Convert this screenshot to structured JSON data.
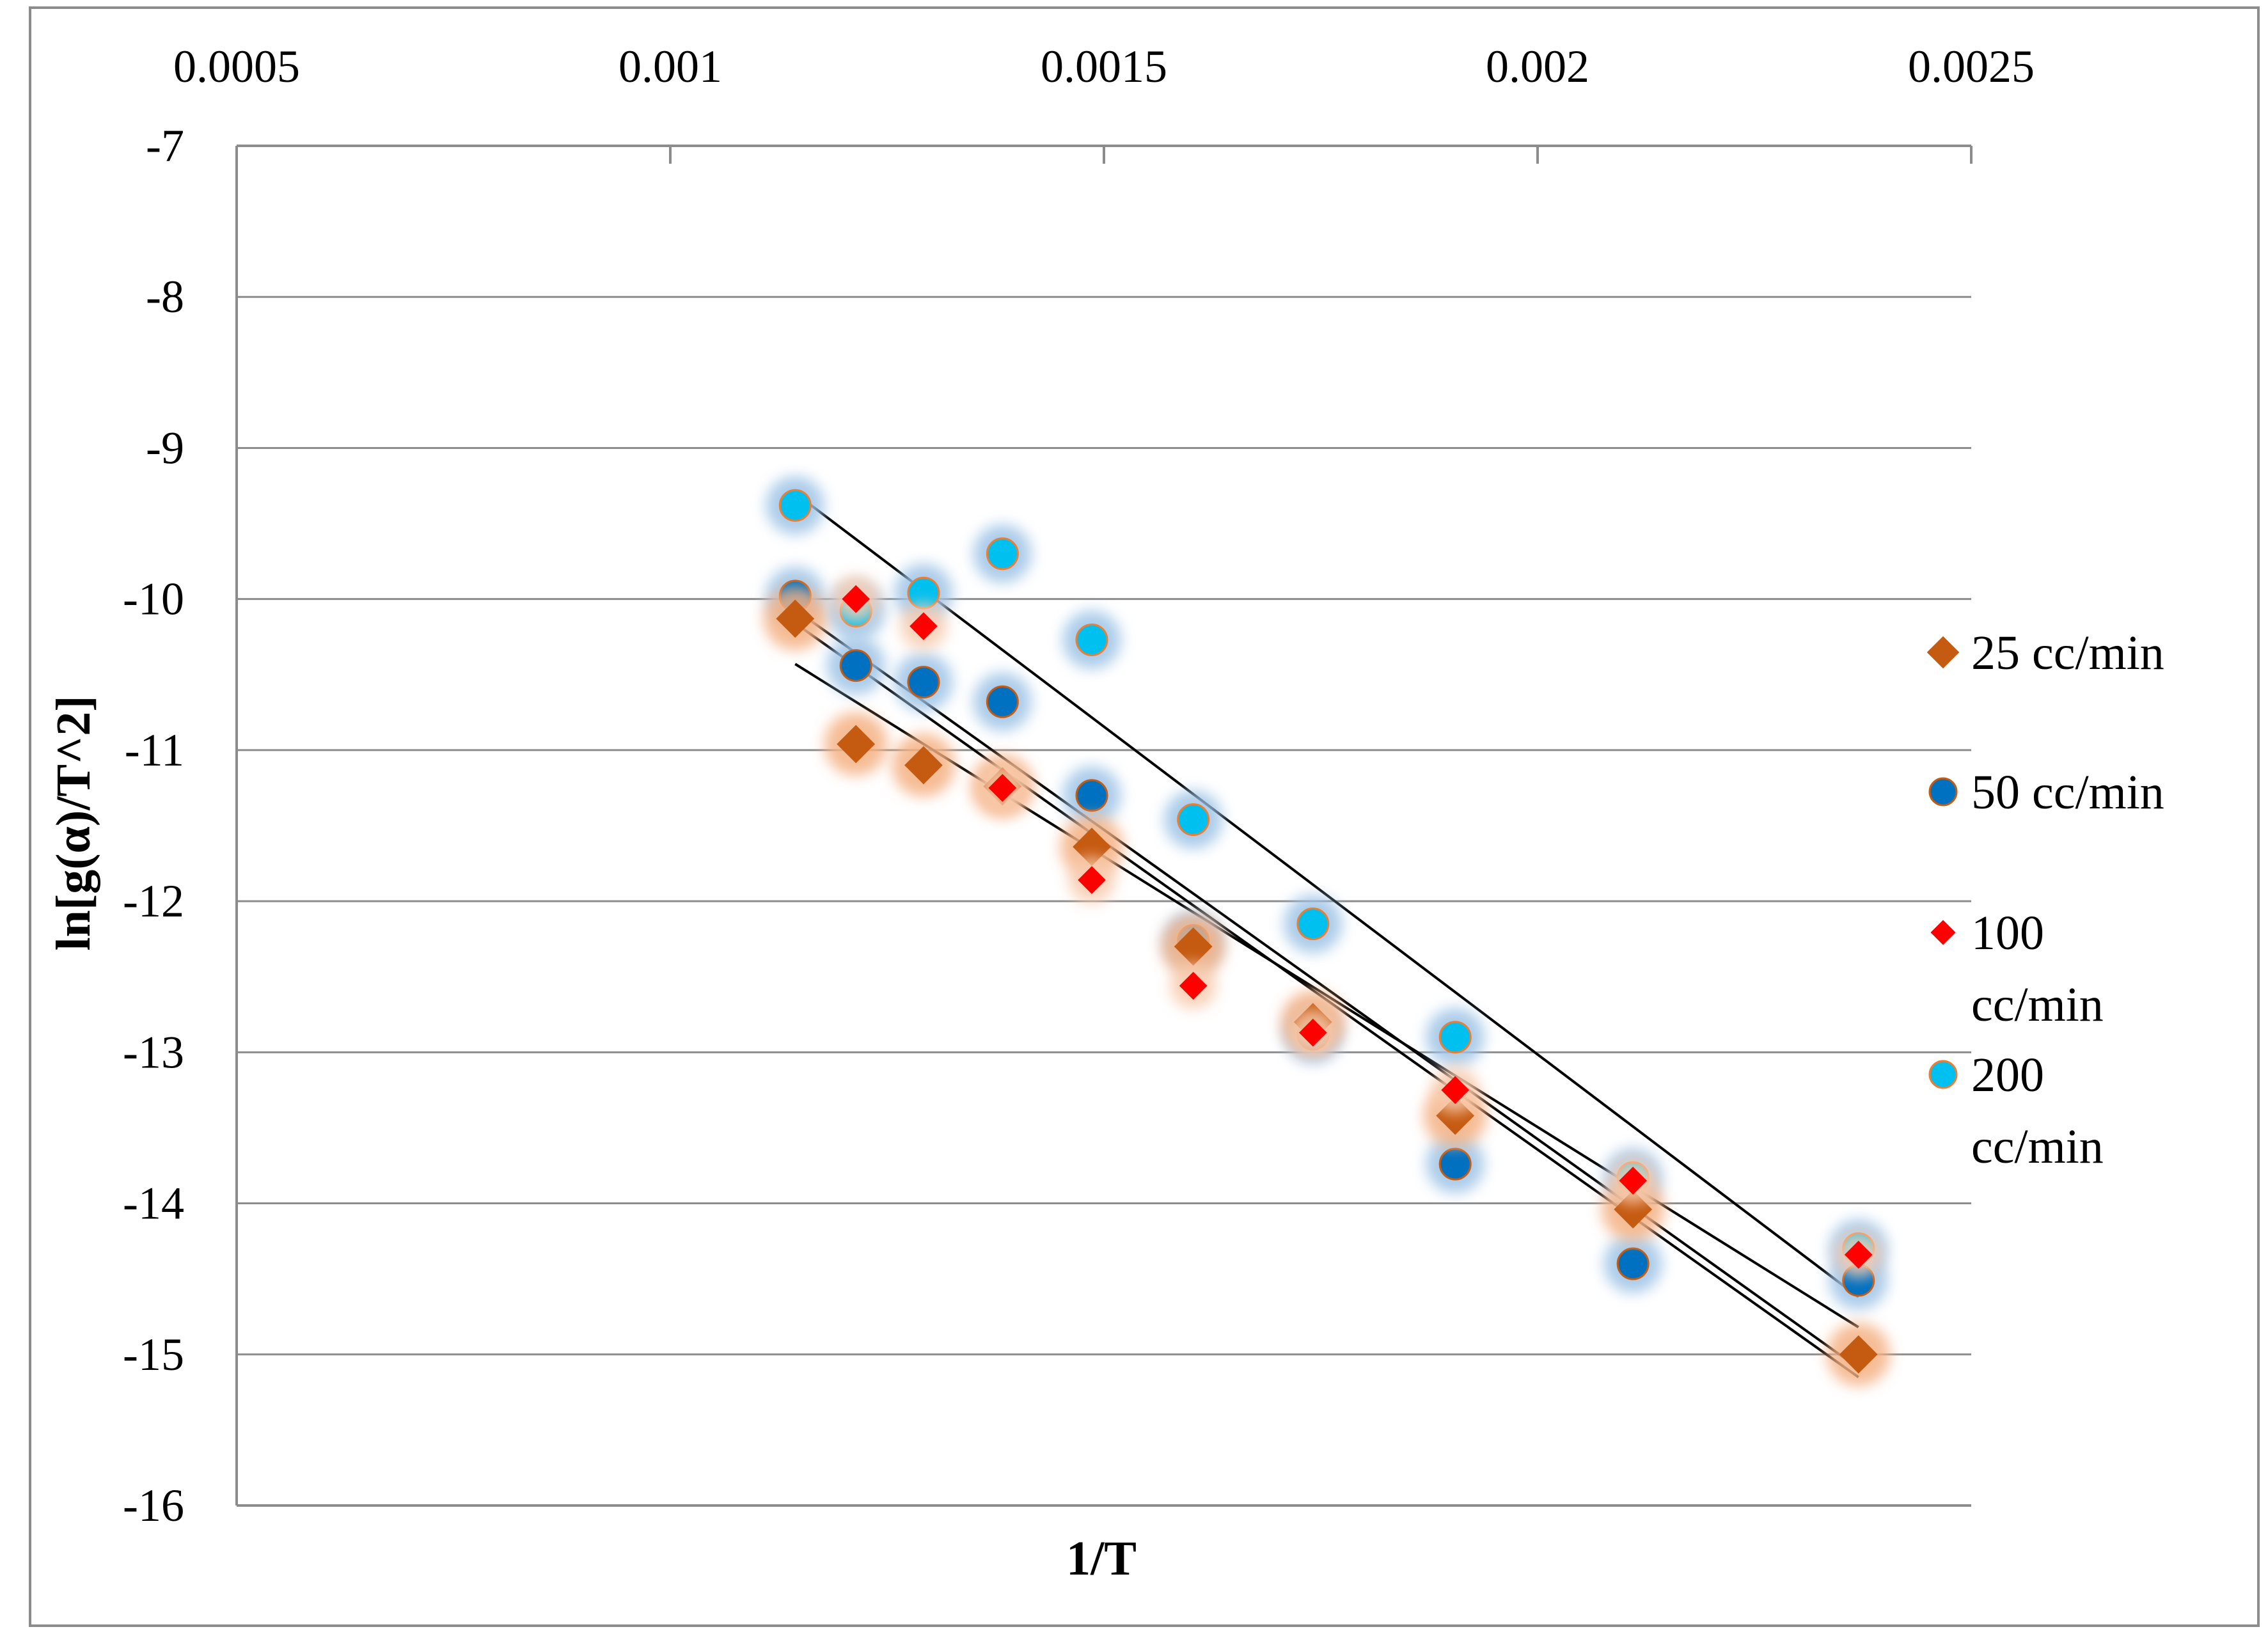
{
  "chart_data": {
    "type": "scatter",
    "title": "",
    "xlabel": "1/T",
    "ylabel": "ln[g(α)/T^2]",
    "x_axis_position": "top",
    "xlim": [
      0.0005,
      0.0025
    ],
    "ylim": [
      -16,
      -7
    ],
    "xticks": [
      "0.0005",
      "0.001",
      "0.0015",
      "0.002",
      "0.0025"
    ],
    "yticks": [
      "-7",
      "-8",
      "-9",
      "-10",
      "-11",
      "-12",
      "-13",
      "-14",
      "-15",
      "-16"
    ],
    "grid": "horizontal",
    "legend_position": "right",
    "series": [
      {
        "name": "25 cc/min",
        "marker": "diamond",
        "color": "#c55a11",
        "glow": "#f4b183",
        "x": [
          0.001144,
          0.001214,
          0.001292,
          0.001383,
          0.001486,
          0.001603,
          0.001741,
          0.001905,
          0.00211,
          0.00237
        ],
        "y": [
          -10.13,
          -10.96,
          -11.1,
          -11.24,
          -11.64,
          -12.3,
          -12.8,
          -13.42,
          -14.04,
          -15.0
        ],
        "fit": {
          "x": [
            0.001144,
            0.00237
          ],
          "y": [
            -10.43,
            -14.82
          ]
        }
      },
      {
        "name": "50 cc/min",
        "marker": "circle",
        "color": "#0070c0",
        "edge": "#c55a11",
        "glow": "#9dc3e6",
        "x": [
          0.001144,
          0.001214,
          0.001292,
          0.001383,
          0.001486,
          0.001603,
          0.001741,
          0.001905,
          0.00211,
          0.00237
        ],
        "y": [
          -9.98,
          -10.44,
          -10.55,
          -10.68,
          -11.3,
          -12.26,
          -12.88,
          -13.74,
          -14.4,
          -14.51
        ],
        "fit": {
          "x": [
            0.001144,
            0.00237
          ],
          "y": [
            -10.07,
            -15.09
          ]
        }
      },
      {
        "name": "100 cc/min",
        "marker": "diamond",
        "color": "#ff0000",
        "glow": "#f8cbad",
        "x": [
          0.001214,
          0.001292,
          0.001383,
          0.001486,
          0.001603,
          0.001741,
          0.001905,
          0.00211,
          0.00237
        ],
        "y": [
          -10.0,
          -10.18,
          -11.25,
          -11.86,
          -12.56,
          -12.87,
          -13.25,
          -13.85,
          -14.34
        ],
        "fit": {
          "x": [
            0.001144,
            0.00237
          ],
          "y": [
            -10.16,
            -15.15
          ]
        }
      },
      {
        "name": "200 cc/min",
        "marker": "circle",
        "color": "#00c0f0",
        "edge": "#ed7d31",
        "glow": "#9dc3e6",
        "x": [
          0.001144,
          0.001214,
          0.001292,
          0.001383,
          0.001486,
          0.001603,
          0.001741,
          0.001905,
          0.00211,
          0.00237
        ],
        "y": [
          -9.38,
          -10.08,
          -9.96,
          -9.7,
          -10.27,
          -11.46,
          -12.15,
          -12.9,
          -13.83,
          -14.3
        ],
        "fit": {
          "x": [
            0.001144,
            0.00237
          ],
          "y": [
            -9.3,
            -14.62
          ]
        }
      }
    ]
  }
}
